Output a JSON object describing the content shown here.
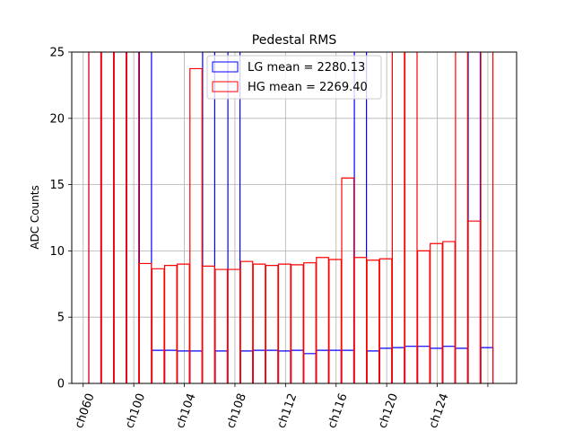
{
  "chart_data": {
    "type": "bar",
    "title": "Pedestal RMS",
    "xlabel": "",
    "ylabel": "ADC Counts",
    "ylim": [
      0,
      25
    ],
    "yticks": [
      0,
      5,
      10,
      15,
      20,
      25
    ],
    "grid": true,
    "legend_position": "top-center",
    "x_tick_labels": [
      "ch060",
      "ch100",
      "ch104",
      "ch108",
      "ch112",
      "ch116",
      "ch120",
      "ch124"
    ],
    "series": [
      {
        "name": "LG mean = 2280.13",
        "color": "#0000ff",
        "values": [
          25,
          25,
          25,
          25,
          25,
          2.5,
          2.5,
          2.45,
          2.45,
          25,
          2.45,
          25,
          2.45,
          2.5,
          2.5,
          2.45,
          2.5,
          2.25,
          2.5,
          2.5,
          2.5,
          25,
          2.45,
          2.65,
          2.7,
          2.8,
          2.8,
          2.65,
          2.8,
          2.65,
          25,
          2.7
        ]
      },
      {
        "name": "HG mean = 2269.40",
        "color": "#ff0000",
        "values": [
          25,
          25,
          25,
          25,
          9.05,
          8.65,
          8.9,
          9.0,
          23.75,
          8.85,
          8.6,
          8.6,
          9.2,
          9.0,
          8.9,
          9.0,
          8.95,
          9.1,
          9.5,
          9.35,
          15.5,
          9.5,
          9.3,
          9.4,
          25,
          25,
          10.0,
          10.55,
          10.7,
          25,
          12.25,
          25
        ]
      }
    ]
  }
}
